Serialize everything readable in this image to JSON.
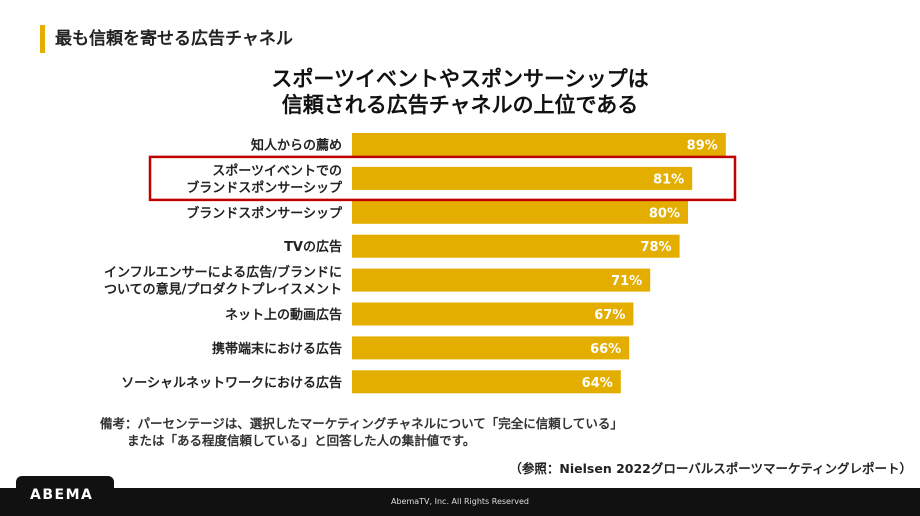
{
  "section_title": "最も信頼を寄せる広告チャネル",
  "headline": [
    "スポーツイベントやスポンサーシップは",
    "信頼される広告チャネルの上位である"
  ],
  "note": {
    "line1": "備考：パーセンテージは、選択したマーケティングチャネルについて「完全に信頼している」",
    "line2": "または「ある程度信頼している」と回答した人の集計値です。"
  },
  "source": "（参照：Nielsen 2022グローバルスポーツマーケティングレポート）",
  "footer": {
    "logo": "ABEMA",
    "copyright": "AbemaTV, Inc. All Rights Reserved"
  },
  "colors": {
    "bar": "#e3ae00",
    "highlight": "#c00000",
    "accent": "#e3ae00"
  },
  "chart_data": {
    "type": "bar",
    "orientation": "horizontal",
    "title": "スポーツイベントやスポンサーシップは信頼される広告チャネルの上位である",
    "xlabel": "",
    "ylabel": "",
    "xlim": [
      0,
      100
    ],
    "grid": false,
    "highlighted_index": 1,
    "categories": [
      [
        "知人からの薦め"
      ],
      [
        "スポーツイベントでの",
        "ブランドスポンサーシップ"
      ],
      [
        "ブランドスポンサーシップ"
      ],
      [
        "TVの広告"
      ],
      [
        "インフルエンサーによる広告/ブランドに",
        "ついての意見/プロダクトプレイスメント"
      ],
      [
        "ネット上の動画広告"
      ],
      [
        "携帯端末における広告"
      ],
      [
        "ソーシャルネットワークにおける広告"
      ]
    ],
    "values": [
      89,
      81,
      80,
      78,
      71,
      67,
      66,
      64
    ],
    "value_labels": [
      "89%",
      "81%",
      "80%",
      "78%",
      "71%",
      "67%",
      "66%",
      "64%"
    ]
  }
}
